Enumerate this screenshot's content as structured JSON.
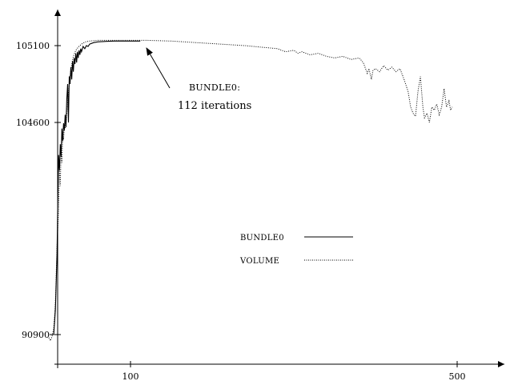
{
  "chart_data": {
    "type": "line",
    "xlim": [
      0,
      530
    ],
    "ylim_display": [
      "90900",
      "104600",
      "105100"
    ],
    "x_ticks": [
      {
        "value": 100,
        "label": "100"
      },
      {
        "value": 500,
        "label": "500"
      }
    ],
    "y_ticks": [
      {
        "value": 90900,
        "label": "90900"
      },
      {
        "value": 104600,
        "label": "104600"
      },
      {
        "value": 105100,
        "label": "105100"
      }
    ],
    "grid": false,
    "legend": {
      "position": "center-right"
    },
    "series": [
      {
        "name": "BUNDLE0",
        "style": "solid",
        "points": [
          [
            1,
            90900
          ],
          [
            3,
            90900
          ],
          [
            6,
            90900
          ],
          [
            8,
            92500
          ],
          [
            10,
            96000
          ],
          [
            11,
            99500
          ],
          [
            12,
            102500
          ],
          [
            13,
            101500
          ],
          [
            14,
            103200
          ],
          [
            15,
            102400
          ],
          [
            16,
            104200
          ],
          [
            17,
            103400
          ],
          [
            18,
            104550
          ],
          [
            19,
            104100
          ],
          [
            20,
            104650
          ],
          [
            21,
            104300
          ],
          [
            22,
            104750
          ],
          [
            23,
            104850
          ],
          [
            24,
            104600
          ],
          [
            25,
            104900
          ],
          [
            26,
            104850
          ],
          [
            27,
            104960
          ],
          [
            28,
            104880
          ],
          [
            29,
            105000
          ],
          [
            30,
            104930
          ],
          [
            31,
            105020
          ],
          [
            32,
            104980
          ],
          [
            33,
            105050
          ],
          [
            34,
            104990
          ],
          [
            35,
            105060
          ],
          [
            36,
            105020
          ],
          [
            37,
            105070
          ],
          [
            38,
            105040
          ],
          [
            39,
            105080
          ],
          [
            40,
            105060
          ],
          [
            42,
            105095
          ],
          [
            44,
            105080
          ],
          [
            46,
            105100
          ],
          [
            48,
            105095
          ],
          [
            50,
            105110
          ],
          [
            55,
            105120
          ],
          [
            60,
            105125
          ],
          [
            70,
            105128
          ],
          [
            80,
            105130
          ],
          [
            90,
            105130
          ],
          [
            100,
            105130
          ],
          [
            112,
            105130
          ]
        ]
      },
      {
        "name": "VOLUME",
        "style": "dotted",
        "points": [
          [
            0,
            90700
          ],
          [
            2,
            90500
          ],
          [
            4,
            90800
          ],
          [
            6,
            91300
          ],
          [
            8,
            93000
          ],
          [
            10,
            96500
          ],
          [
            12,
            99000
          ],
          [
            13,
            101500
          ],
          [
            14,
            100500
          ],
          [
            15,
            102800
          ],
          [
            16,
            102000
          ],
          [
            17,
            103800
          ],
          [
            18,
            103500
          ],
          [
            19,
            104300
          ],
          [
            20,
            104200
          ],
          [
            22,
            104650
          ],
          [
            24,
            104800
          ],
          [
            26,
            104900
          ],
          [
            28,
            104980
          ],
          [
            30,
            105030
          ],
          [
            33,
            105070
          ],
          [
            36,
            105090
          ],
          [
            40,
            105110
          ],
          [
            45,
            105125
          ],
          [
            50,
            105130
          ],
          [
            60,
            105135
          ],
          [
            80,
            105135
          ],
          [
            100,
            105135
          ],
          [
            120,
            105135
          ],
          [
            150,
            105130
          ],
          [
            180,
            105120
          ],
          [
            210,
            105110
          ],
          [
            240,
            105100
          ],
          [
            260,
            105090
          ],
          [
            280,
            105080
          ],
          [
            290,
            105060
          ],
          [
            300,
            105070
          ],
          [
            305,
            105050
          ],
          [
            310,
            105060
          ],
          [
            320,
            105040
          ],
          [
            330,
            105050
          ],
          [
            340,
            105030
          ],
          [
            350,
            105020
          ],
          [
            360,
            105030
          ],
          [
            370,
            105010
          ],
          [
            380,
            105020
          ],
          [
            385,
            104990
          ],
          [
            390,
            104920
          ],
          [
            392,
            104950
          ],
          [
            395,
            104880
          ],
          [
            397,
            104940
          ],
          [
            400,
            104950
          ],
          [
            405,
            104930
          ],
          [
            410,
            104970
          ],
          [
            415,
            104940
          ],
          [
            420,
            104960
          ],
          [
            425,
            104930
          ],
          [
            430,
            104950
          ],
          [
            435,
            104880
          ],
          [
            440,
            104800
          ],
          [
            443,
            104700
          ],
          [
            446,
            104660
          ],
          [
            449,
            104640
          ],
          [
            452,
            104800
          ],
          [
            455,
            104900
          ],
          [
            458,
            104700
          ],
          [
            460,
            104630
          ],
          [
            463,
            104660
          ],
          [
            466,
            104600
          ],
          [
            469,
            104700
          ],
          [
            472,
            104680
          ],
          [
            475,
            104720
          ],
          [
            478,
            104650
          ],
          [
            481,
            104700
          ],
          [
            484,
            104820
          ],
          [
            487,
            104700
          ],
          [
            490,
            104740
          ],
          [
            492,
            104680
          ],
          [
            494,
            104700
          ]
        ]
      }
    ],
    "annotation": {
      "title": "BUNDLE0:",
      "text": "112 iterations",
      "points_to": [
        112,
        105130
      ]
    }
  }
}
